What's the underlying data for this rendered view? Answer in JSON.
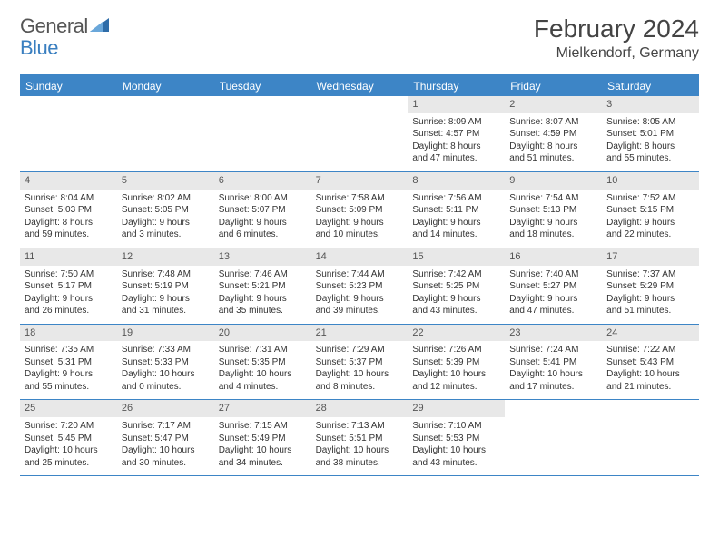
{
  "brand": {
    "part1": "General",
    "part2": "Blue"
  },
  "title": "February 2024",
  "location": "Mielkendorf, Germany",
  "colors": {
    "header_bg": "#3d85c6",
    "daynum_bg": "#e8e8e8",
    "text": "#333333",
    "brand_gray": "#555555",
    "brand_blue": "#3a7fc0"
  },
  "days_of_week": [
    "Sunday",
    "Monday",
    "Tuesday",
    "Wednesday",
    "Thursday",
    "Friday",
    "Saturday"
  ],
  "weeks": [
    [
      null,
      null,
      null,
      null,
      {
        "n": "1",
        "sr": "Sunrise: 8:09 AM",
        "ss": "Sunset: 4:57 PM",
        "d1": "Daylight: 8 hours",
        "d2": "and 47 minutes."
      },
      {
        "n": "2",
        "sr": "Sunrise: 8:07 AM",
        "ss": "Sunset: 4:59 PM",
        "d1": "Daylight: 8 hours",
        "d2": "and 51 minutes."
      },
      {
        "n": "3",
        "sr": "Sunrise: 8:05 AM",
        "ss": "Sunset: 5:01 PM",
        "d1": "Daylight: 8 hours",
        "d2": "and 55 minutes."
      }
    ],
    [
      {
        "n": "4",
        "sr": "Sunrise: 8:04 AM",
        "ss": "Sunset: 5:03 PM",
        "d1": "Daylight: 8 hours",
        "d2": "and 59 minutes."
      },
      {
        "n": "5",
        "sr": "Sunrise: 8:02 AM",
        "ss": "Sunset: 5:05 PM",
        "d1": "Daylight: 9 hours",
        "d2": "and 3 minutes."
      },
      {
        "n": "6",
        "sr": "Sunrise: 8:00 AM",
        "ss": "Sunset: 5:07 PM",
        "d1": "Daylight: 9 hours",
        "d2": "and 6 minutes."
      },
      {
        "n": "7",
        "sr": "Sunrise: 7:58 AM",
        "ss": "Sunset: 5:09 PM",
        "d1": "Daylight: 9 hours",
        "d2": "and 10 minutes."
      },
      {
        "n": "8",
        "sr": "Sunrise: 7:56 AM",
        "ss": "Sunset: 5:11 PM",
        "d1": "Daylight: 9 hours",
        "d2": "and 14 minutes."
      },
      {
        "n": "9",
        "sr": "Sunrise: 7:54 AM",
        "ss": "Sunset: 5:13 PM",
        "d1": "Daylight: 9 hours",
        "d2": "and 18 minutes."
      },
      {
        "n": "10",
        "sr": "Sunrise: 7:52 AM",
        "ss": "Sunset: 5:15 PM",
        "d1": "Daylight: 9 hours",
        "d2": "and 22 minutes."
      }
    ],
    [
      {
        "n": "11",
        "sr": "Sunrise: 7:50 AM",
        "ss": "Sunset: 5:17 PM",
        "d1": "Daylight: 9 hours",
        "d2": "and 26 minutes."
      },
      {
        "n": "12",
        "sr": "Sunrise: 7:48 AM",
        "ss": "Sunset: 5:19 PM",
        "d1": "Daylight: 9 hours",
        "d2": "and 31 minutes."
      },
      {
        "n": "13",
        "sr": "Sunrise: 7:46 AM",
        "ss": "Sunset: 5:21 PM",
        "d1": "Daylight: 9 hours",
        "d2": "and 35 minutes."
      },
      {
        "n": "14",
        "sr": "Sunrise: 7:44 AM",
        "ss": "Sunset: 5:23 PM",
        "d1": "Daylight: 9 hours",
        "d2": "and 39 minutes."
      },
      {
        "n": "15",
        "sr": "Sunrise: 7:42 AM",
        "ss": "Sunset: 5:25 PM",
        "d1": "Daylight: 9 hours",
        "d2": "and 43 minutes."
      },
      {
        "n": "16",
        "sr": "Sunrise: 7:40 AM",
        "ss": "Sunset: 5:27 PM",
        "d1": "Daylight: 9 hours",
        "d2": "and 47 minutes."
      },
      {
        "n": "17",
        "sr": "Sunrise: 7:37 AM",
        "ss": "Sunset: 5:29 PM",
        "d1": "Daylight: 9 hours",
        "d2": "and 51 minutes."
      }
    ],
    [
      {
        "n": "18",
        "sr": "Sunrise: 7:35 AM",
        "ss": "Sunset: 5:31 PM",
        "d1": "Daylight: 9 hours",
        "d2": "and 55 minutes."
      },
      {
        "n": "19",
        "sr": "Sunrise: 7:33 AM",
        "ss": "Sunset: 5:33 PM",
        "d1": "Daylight: 10 hours",
        "d2": "and 0 minutes."
      },
      {
        "n": "20",
        "sr": "Sunrise: 7:31 AM",
        "ss": "Sunset: 5:35 PM",
        "d1": "Daylight: 10 hours",
        "d2": "and 4 minutes."
      },
      {
        "n": "21",
        "sr": "Sunrise: 7:29 AM",
        "ss": "Sunset: 5:37 PM",
        "d1": "Daylight: 10 hours",
        "d2": "and 8 minutes."
      },
      {
        "n": "22",
        "sr": "Sunrise: 7:26 AM",
        "ss": "Sunset: 5:39 PM",
        "d1": "Daylight: 10 hours",
        "d2": "and 12 minutes."
      },
      {
        "n": "23",
        "sr": "Sunrise: 7:24 AM",
        "ss": "Sunset: 5:41 PM",
        "d1": "Daylight: 10 hours",
        "d2": "and 17 minutes."
      },
      {
        "n": "24",
        "sr": "Sunrise: 7:22 AM",
        "ss": "Sunset: 5:43 PM",
        "d1": "Daylight: 10 hours",
        "d2": "and 21 minutes."
      }
    ],
    [
      {
        "n": "25",
        "sr": "Sunrise: 7:20 AM",
        "ss": "Sunset: 5:45 PM",
        "d1": "Daylight: 10 hours",
        "d2": "and 25 minutes."
      },
      {
        "n": "26",
        "sr": "Sunrise: 7:17 AM",
        "ss": "Sunset: 5:47 PM",
        "d1": "Daylight: 10 hours",
        "d2": "and 30 minutes."
      },
      {
        "n": "27",
        "sr": "Sunrise: 7:15 AM",
        "ss": "Sunset: 5:49 PM",
        "d1": "Daylight: 10 hours",
        "d2": "and 34 minutes."
      },
      {
        "n": "28",
        "sr": "Sunrise: 7:13 AM",
        "ss": "Sunset: 5:51 PM",
        "d1": "Daylight: 10 hours",
        "d2": "and 38 minutes."
      },
      {
        "n": "29",
        "sr": "Sunrise: 7:10 AM",
        "ss": "Sunset: 5:53 PM",
        "d1": "Daylight: 10 hours",
        "d2": "and 43 minutes."
      },
      null,
      null
    ]
  ]
}
